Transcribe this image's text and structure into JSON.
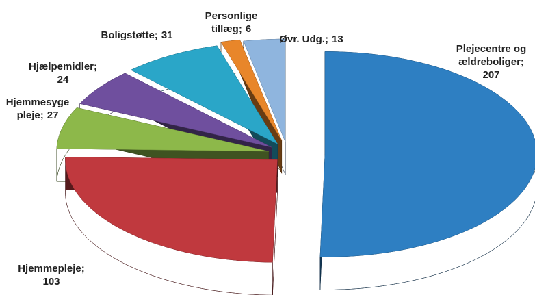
{
  "chart_data": {
    "type": "pie",
    "categories": [
      "Plejecentre og ældreboliger;",
      "Hjemmepleje;",
      "Hjemmesyge pleje;",
      "Hjælpemidler;",
      "Boligstøtte;",
      "Personlige tillæg;",
      "Øvr. Udg.;"
    ],
    "values": [
      207,
      103,
      27,
      24,
      31,
      6,
      13
    ],
    "colors": [
      "#2e7fc2",
      "#c0393e",
      "#8db84a",
      "#6f4f9e",
      "#2aa6c8",
      "#e8862a",
      "#8fb5de"
    ]
  }
}
